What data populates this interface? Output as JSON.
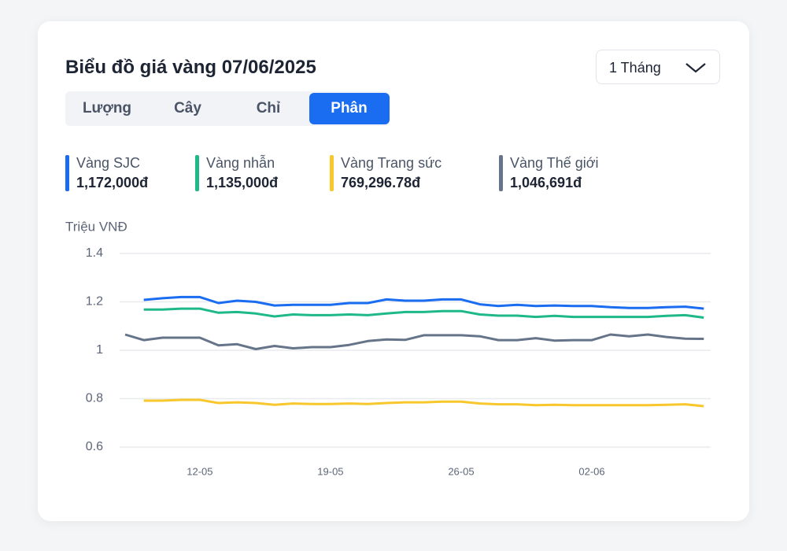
{
  "header": {
    "title": "Biểu đồ giá vàng 07/06/2025",
    "period": "1 Tháng"
  },
  "tabs": [
    "Lượng",
    "Cây",
    "Chỉ",
    "Phân"
  ],
  "active_tab": 3,
  "chart_data": {
    "type": "line",
    "ylabel": "Triệu VNĐ",
    "categories": [
      null,
      null,
      null,
      null,
      "12-05",
      null,
      null,
      null,
      null,
      null,
      null,
      "19-05",
      null,
      null,
      null,
      null,
      null,
      null,
      "26-05",
      null,
      null,
      null,
      null,
      null,
      null,
      "02-06",
      null,
      null,
      null,
      null,
      null,
      null
    ],
    "ylim": [
      0.6,
      1.4
    ],
    "yticks": [
      1.4,
      1.2,
      1,
      0.8,
      0.6
    ],
    "grid": true,
    "series": [
      {
        "name": "Vàng SJC",
        "color": "#1a6cf0",
        "price_label": "1,172,000đ",
        "values": [
          null,
          1.208,
          1.215,
          1.22,
          1.22,
          1.195,
          1.205,
          1.2,
          1.185,
          1.188,
          1.188,
          1.188,
          1.195,
          1.195,
          1.21,
          1.205,
          1.205,
          1.21,
          1.21,
          1.19,
          1.183,
          1.188,
          1.183,
          1.185,
          1.183,
          1.183,
          1.178,
          1.175,
          1.175,
          1.178,
          1.18,
          1.172
        ]
      },
      {
        "name": "Vàng nhẫn",
        "color": "#1eb889",
        "price_label": "1,135,000đ",
        "values": [
          null,
          1.168,
          1.168,
          1.172,
          1.172,
          1.155,
          1.158,
          1.152,
          1.14,
          1.148,
          1.145,
          1.145,
          1.148,
          1.145,
          1.152,
          1.158,
          1.158,
          1.162,
          1.162,
          1.148,
          1.143,
          1.143,
          1.138,
          1.142,
          1.138,
          1.138,
          1.138,
          1.138,
          1.138,
          1.142,
          1.145,
          1.135
        ]
      },
      {
        "name": "Vàng Trang sức",
        "color": "#f7c72c",
        "price_label": "769,296.78đ",
        "values": [
          null,
          0.792,
          0.792,
          0.795,
          0.795,
          0.782,
          0.785,
          0.782,
          0.775,
          0.78,
          0.778,
          0.778,
          0.78,
          0.778,
          0.782,
          0.785,
          0.785,
          0.788,
          0.788,
          0.78,
          0.777,
          0.777,
          0.773,
          0.775,
          0.773,
          0.773,
          0.773,
          0.773,
          0.773,
          0.775,
          0.777,
          0.769
        ]
      },
      {
        "name": "Vàng Thế giới",
        "color": "#667489",
        "price_label": "1,046,691đ",
        "values": [
          1.065,
          1.042,
          1.052,
          1.052,
          1.052,
          1.02,
          1.025,
          1.005,
          1.018,
          1.008,
          1.013,
          1.013,
          1.022,
          1.038,
          1.045,
          1.043,
          1.062,
          1.062,
          1.062,
          1.058,
          1.042,
          1.042,
          1.05,
          1.04,
          1.042,
          1.042,
          1.065,
          1.058,
          1.065,
          1.055,
          1.048,
          1.047
        ]
      }
    ]
  }
}
